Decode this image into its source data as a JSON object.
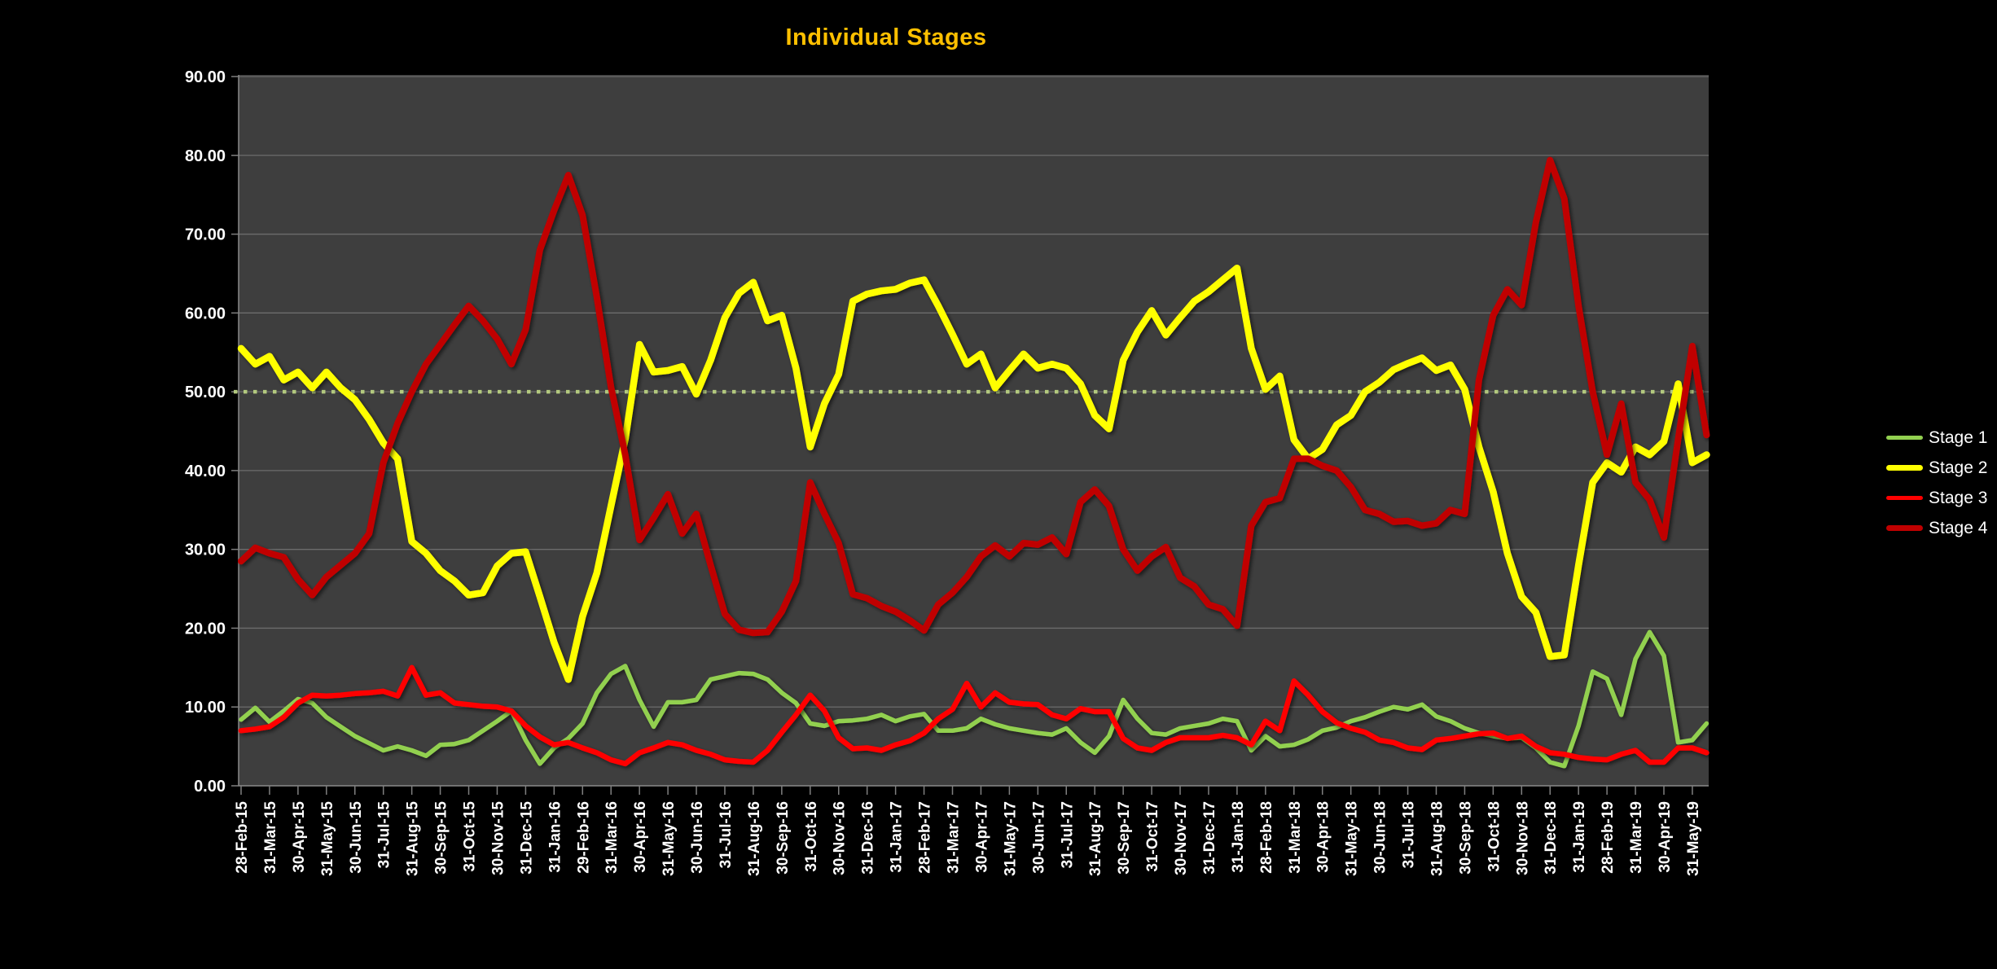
{
  "chart_data": {
    "type": "line",
    "title": "Individual Stages",
    "title_color": "#FFC000",
    "xlabel": "",
    "ylabel": "",
    "ylim": [
      0,
      90
    ],
    "grid": true,
    "legend_position": "right",
    "background": "#000000",
    "plot_background": "#3E3E3E",
    "gridline_color": "#6C6C6C",
    "axis_color": "#8A8A8A",
    "tick_color": "#7F7F7F",
    "label_color": "#FFFFFF",
    "y_tick_labels": [
      "0.00",
      "10.00",
      "20.00",
      "30.00",
      "40.00",
      "50.00",
      "60.00",
      "70.00",
      "80.00",
      "90.00"
    ],
    "reference_line": {
      "value": 50.0,
      "color": "#B3C97E",
      "style": "dotted"
    },
    "sampling": "2 points per month (source data approximately weekly)",
    "categories": [
      "28-Feb-15",
      "31-Mar-15",
      "30-Apr-15",
      "31-May-15",
      "30-Jun-15",
      "31-Jul-15",
      "31-Aug-15",
      "30-Sep-15",
      "31-Oct-15",
      "30-Nov-15",
      "31-Dec-15",
      "31-Jan-16",
      "29-Feb-16",
      "31-Mar-16",
      "30-Apr-16",
      "31-May-16",
      "30-Jun-16",
      "31-Jul-16",
      "31-Aug-16",
      "30-Sep-16",
      "31-Oct-16",
      "30-Nov-16",
      "31-Dec-16",
      "31-Jan-17",
      "28-Feb-17",
      "31-Mar-17",
      "30-Apr-17",
      "31-May-17",
      "30-Jun-17",
      "31-Jul-17",
      "31-Aug-17",
      "30-Sep-17",
      "31-Oct-17",
      "30-Nov-17",
      "31-Dec-17",
      "31-Jan-18",
      "28-Feb-18",
      "31-Mar-18",
      "30-Apr-18",
      "31-May-18",
      "30-Jun-18",
      "31-Jul-18",
      "31-Aug-18",
      "30-Sep-18",
      "31-Oct-18",
      "30-Nov-18",
      "31-Dec-18",
      "31-Jan-19",
      "28-Feb-19",
      "31-Mar-19",
      "30-Apr-19",
      "31-May-19"
    ],
    "series": [
      {
        "name": "Stage 1",
        "color": "#92D050",
        "width": 5.5,
        "values": [
          8.4,
          9.9,
          8.1,
          9.5,
          11.0,
          10.5,
          8.7,
          7.5,
          6.3,
          5.4,
          4.5,
          5.0,
          4.5,
          3.8,
          5.2,
          5.3,
          5.8,
          7.0,
          8.2,
          9.5,
          5.8,
          2.8,
          4.8,
          6.0,
          7.9,
          11.8,
          14.2,
          15.2,
          10.9,
          7.5,
          10.6,
          10.6,
          10.9,
          13.5,
          13.9,
          14.3,
          14.2,
          13.5,
          11.8,
          10.5,
          7.9,
          7.6,
          8.2,
          8.3,
          8.5,
          9.0,
          8.2,
          8.8,
          9.1,
          7.0,
          7.0,
          7.3,
          8.5,
          7.8,
          7.3,
          7.0,
          6.7,
          6.5,
          7.3,
          5.5,
          4.2,
          6.3,
          10.9,
          8.5,
          6.7,
          6.5,
          7.3,
          7.6,
          7.9,
          8.5,
          8.2,
          4.5,
          6.3,
          5.0,
          5.2,
          5.9,
          7.0,
          7.4,
          8.2,
          8.7,
          9.4,
          10.0,
          9.7,
          10.3,
          8.8,
          8.2,
          7.3,
          6.7,
          6.3,
          6.0,
          6.1,
          4.8,
          3.0,
          2.5,
          7.6,
          14.5,
          13.6,
          9.0,
          16.1,
          19.5,
          16.5,
          5.5,
          5.8,
          7.9
        ]
      },
      {
        "name": "Stage 2",
        "color": "#FFFF00",
        "width": 8.5,
        "values": [
          55.5,
          53.5,
          54.5,
          51.5,
          52.5,
          50.5,
          52.5,
          50.5,
          49.0,
          46.5,
          43.5,
          41.5,
          31.0,
          29.5,
          27.3,
          26.0,
          24.2,
          24.5,
          27.9,
          29.5,
          29.7,
          24.0,
          18.2,
          13.5,
          21.5,
          27.0,
          35.5,
          44.0,
          56.0,
          52.5,
          52.7,
          53.2,
          49.7,
          54.0,
          59.4,
          62.5,
          63.9,
          59.0,
          59.7,
          53.0,
          43.0,
          48.5,
          52.2,
          61.5,
          62.4,
          62.8,
          63.0,
          63.8,
          64.2,
          60.9,
          57.3,
          53.5,
          54.8,
          50.5,
          52.7,
          54.8,
          53.0,
          53.5,
          53.0,
          51.0,
          47.0,
          45.3,
          54.0,
          57.6,
          60.3,
          57.2,
          59.4,
          61.5,
          62.7,
          64.2,
          65.7,
          55.5,
          50.3,
          52.0,
          43.9,
          41.5,
          42.7,
          45.8,
          47.0,
          50.0,
          51.2,
          52.8,
          53.6,
          54.3,
          52.7,
          53.4,
          50.3,
          43.0,
          37.3,
          29.5,
          24.0,
          22.0,
          16.4,
          16.6,
          28.0,
          38.5,
          41.0,
          39.8,
          43.0,
          42.0,
          43.7,
          51.0,
          41.0,
          42.0
        ]
      },
      {
        "name": "Stage 3",
        "color": "#FF0000",
        "width": 6.5,
        "values": [
          7.0,
          7.2,
          7.5,
          8.7,
          10.5,
          11.5,
          11.4,
          11.5,
          11.7,
          11.8,
          12.0,
          11.4,
          15.0,
          11.5,
          11.8,
          10.5,
          10.3,
          10.1,
          10.0,
          9.5,
          7.6,
          6.2,
          5.2,
          5.5,
          4.8,
          4.2,
          3.3,
          2.8,
          4.2,
          4.8,
          5.5,
          5.2,
          4.5,
          4.0,
          3.3,
          3.1,
          3.0,
          4.5,
          6.8,
          9.0,
          11.5,
          9.5,
          6.1,
          4.7,
          4.8,
          4.5,
          5.2,
          5.7,
          6.7,
          8.5,
          9.7,
          13.0,
          10.0,
          11.8,
          10.6,
          10.4,
          10.3,
          9.0,
          8.5,
          9.8,
          9.4,
          9.4,
          6.0,
          4.8,
          4.5,
          5.5,
          6.1,
          6.1,
          6.1,
          6.4,
          6.1,
          5.2,
          8.2,
          7.0,
          13.3,
          11.5,
          9.4,
          8.0,
          7.3,
          6.8,
          5.8,
          5.5,
          4.8,
          4.6,
          5.8,
          6.0,
          6.3,
          6.6,
          6.7,
          6.0,
          6.3,
          5.0,
          4.2,
          4.0,
          3.6,
          3.4,
          3.3,
          4.0,
          4.5,
          3.0,
          3.0,
          4.8,
          4.8,
          4.2
        ]
      },
      {
        "name": "Stage 4",
        "color": "#C00000",
        "width": 8.0,
        "values": [
          28.5,
          30.2,
          29.5,
          29.0,
          26.2,
          24.2,
          26.5,
          28.0,
          29.5,
          32.0,
          41.0,
          46.0,
          50.0,
          53.5,
          56.0,
          58.5,
          60.9,
          59.0,
          56.7,
          53.5,
          57.9,
          68.0,
          73.0,
          77.5,
          72.4,
          62.0,
          50.6,
          42.0,
          31.2,
          34.0,
          37.0,
          32.0,
          34.5,
          28.0,
          21.8,
          19.8,
          19.4,
          19.5,
          22.1,
          26.0,
          38.5,
          34.5,
          30.8,
          24.3,
          23.8,
          22.8,
          22.1,
          21.0,
          19.7,
          23.0,
          24.5,
          26.5,
          29.1,
          30.5,
          29.1,
          30.8,
          30.6,
          31.5,
          29.4,
          36.0,
          37.6,
          35.5,
          30.0,
          27.3,
          29.1,
          30.3,
          26.4,
          25.3,
          23.0,
          22.4,
          20.3,
          33.0,
          36.0,
          36.5,
          41.5,
          41.5,
          40.6,
          40.0,
          37.9,
          35.0,
          34.5,
          33.5,
          33.6,
          33.0,
          33.3,
          35.0,
          34.5,
          51.5,
          59.7,
          63.0,
          61.0,
          71.5,
          79.4,
          74.5,
          60.9,
          50.0,
          42.0,
          48.5,
          38.5,
          36.3,
          31.5,
          44.0,
          55.8,
          44.5
        ]
      }
    ]
  }
}
